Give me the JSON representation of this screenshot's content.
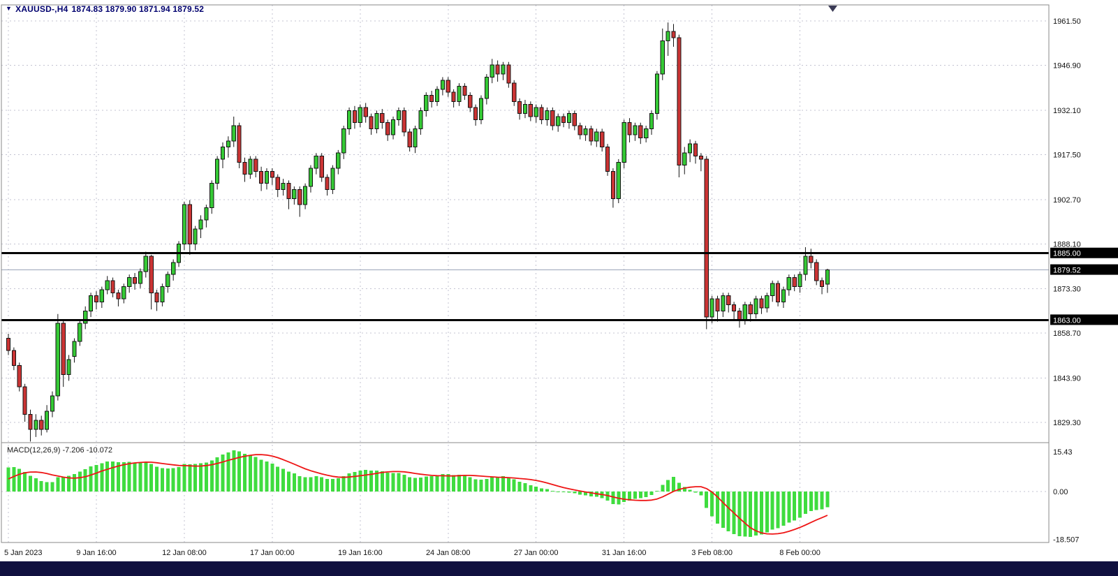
{
  "window": {
    "bottom_bar_color": "#10103f"
  },
  "header": {
    "dropdown_icon": "▼",
    "symbol": "XAUUSD-,H4",
    "ohlc": "1874.83 1879.90 1871.94 1879.52",
    "text_color": "#00006e"
  },
  "chart_data": {
    "type": "candlestick",
    "symbol": "XAUUSD-",
    "timeframe": "H4",
    "title": "XAUUSD-,H4 1874.83 1879.90 1871.94 1879.52",
    "price_axis_ticks": [
      "1961.50",
      "1946.90",
      "1932.10",
      "1917.50",
      "1902.70",
      "1888.10",
      "1873.30",
      "1858.70",
      "1843.90",
      "1829.30"
    ],
    "time_axis_labels": [
      "5 Jan 2023",
      "9 Jan 16:00",
      "12 Jan 08:00",
      "17 Jan 00:00",
      "19 Jan 16:00",
      "24 Jan 08:00",
      "27 Jan 00:00",
      "31 Jan 16:00",
      "3 Feb 08:00",
      "8 Feb 00:00"
    ],
    "hlines": [
      {
        "price": 1885.0,
        "label": "1885.00"
      },
      {
        "price": 1863.0,
        "label": "1863.00"
      }
    ],
    "current_price": {
      "value": 1879.52,
      "label": "1879.52"
    },
    "colors": {
      "up": "#35c935",
      "down": "#cb3434",
      "outline": "#141414",
      "hline": "#000000",
      "bid_line": "#9aa4b8",
      "macd_hist": "#3fdc3f",
      "macd_signal": "#ee1515"
    },
    "candles_ohlc": [
      [
        1857,
        1858.5,
        1851.5,
        1853
      ],
      [
        1853,
        1854,
        1846.5,
        1848
      ],
      [
        1848,
        1849,
        1839.5,
        1841
      ],
      [
        1841,
        1842,
        1829.5,
        1832
      ],
      [
        1832,
        1833.5,
        1823,
        1827
      ],
      [
        1827,
        1832,
        1824.5,
        1830
      ],
      [
        1830,
        1831.5,
        1825,
        1827
      ],
      [
        1827,
        1835,
        1826,
        1833
      ],
      [
        1833,
        1839.5,
        1831,
        1838
      ],
      [
        1838,
        1865,
        1836.5,
        1862
      ],
      [
        1862,
        1863,
        1841,
        1845
      ],
      [
        1845,
        1851.5,
        1843,
        1850
      ],
      [
        1851,
        1857,
        1849,
        1856
      ],
      [
        1856,
        1863,
        1854.5,
        1862
      ],
      [
        1862,
        1867.5,
        1860,
        1866
      ],
      [
        1866,
        1872,
        1864,
        1871
      ],
      [
        1871,
        1872.5,
        1866.5,
        1869
      ],
      [
        1869,
        1874,
        1867,
        1873
      ],
      [
        1873,
        1877.5,
        1871.5,
        1876
      ],
      [
        1876,
        1877,
        1870.5,
        1872
      ],
      [
        1872,
        1873,
        1867.5,
        1870
      ],
      [
        1870,
        1875,
        1868.5,
        1874
      ],
      [
        1874,
        1878,
        1872,
        1877
      ],
      [
        1877,
        1878.5,
        1873,
        1875
      ],
      [
        1875,
        1880,
        1873.5,
        1879
      ],
      [
        1879,
        1885.5,
        1877,
        1884
      ],
      [
        1884,
        1884.5,
        1866.5,
        1872
      ],
      [
        1872,
        1873,
        1866,
        1869
      ],
      [
        1869,
        1875,
        1867.5,
        1874
      ],
      [
        1874,
        1879,
        1872,
        1878
      ],
      [
        1878,
        1883,
        1876,
        1882
      ],
      [
        1882,
        1889,
        1880.5,
        1888
      ],
      [
        1888,
        1902,
        1886,
        1901
      ],
      [
        1901,
        1902.5,
        1884.5,
        1888
      ],
      [
        1888,
        1894,
        1886,
        1893
      ],
      [
        1893,
        1897.5,
        1890,
        1896
      ],
      [
        1896,
        1901,
        1893.5,
        1900
      ],
      [
        1900,
        1909,
        1898,
        1908
      ],
      [
        1908,
        1917,
        1906,
        1916
      ],
      [
        1916,
        1921.5,
        1913,
        1920
      ],
      [
        1920,
        1923.5,
        1916.5,
        1922
      ],
      [
        1922,
        1930,
        1920,
        1927
      ],
      [
        1927,
        1928,
        1913,
        1915
      ],
      [
        1915,
        1916.5,
        1908.5,
        1911
      ],
      [
        1911,
        1917,
        1909.5,
        1916
      ],
      [
        1916,
        1917,
        1910,
        1912
      ],
      [
        1912,
        1913.5,
        1905.5,
        1908
      ],
      [
        1908,
        1913,
        1906,
        1912
      ],
      [
        1912,
        1913,
        1907.5,
        1910
      ],
      [
        1910,
        1911,
        1903.5,
        1906
      ],
      [
        1906,
        1909.5,
        1904,
        1908
      ],
      [
        1908,
        1909,
        1899.5,
        1903
      ],
      [
        1903,
        1907,
        1901,
        1906
      ],
      [
        1906,
        1907,
        1897,
        1901
      ],
      [
        1901,
        1908,
        1899.5,
        1907
      ],
      [
        1907,
        1914,
        1905,
        1913
      ],
      [
        1913,
        1918,
        1911,
        1917
      ],
      [
        1917,
        1918,
        1908.5,
        1910
      ],
      [
        1910,
        1911,
        1904,
        1906
      ],
      [
        1906,
        1914,
        1904.5,
        1913
      ],
      [
        1913,
        1919,
        1911,
        1918
      ],
      [
        1918,
        1927,
        1916,
        1926
      ],
      [
        1926,
        1933,
        1924,
        1932
      ],
      [
        1932,
        1933.5,
        1926,
        1928
      ],
      [
        1928,
        1934,
        1926.5,
        1933
      ],
      [
        1933,
        1934.5,
        1928,
        1930
      ],
      [
        1930,
        1931,
        1924,
        1926
      ],
      [
        1926,
        1932,
        1924.5,
        1931
      ],
      [
        1931,
        1932.5,
        1926,
        1928
      ],
      [
        1928,
        1929,
        1922,
        1924
      ],
      [
        1924,
        1930,
        1922.5,
        1929
      ],
      [
        1929,
        1933,
        1927,
        1932
      ],
      [
        1932,
        1933,
        1923.5,
        1925
      ],
      [
        1925,
        1926,
        1918.5,
        1920
      ],
      [
        1920,
        1927,
        1918,
        1926
      ],
      [
        1926,
        1933,
        1924,
        1932
      ],
      [
        1932,
        1938,
        1930,
        1937
      ],
      [
        1937,
        1938.5,
        1933,
        1935
      ],
      [
        1935,
        1940,
        1933.5,
        1939
      ],
      [
        1939,
        1943,
        1937,
        1942
      ],
      [
        1942,
        1943,
        1936.5,
        1938
      ],
      [
        1938,
        1939,
        1933,
        1935
      ],
      [
        1935,
        1941,
        1933.5,
        1940
      ],
      [
        1940,
        1941,
        1935.5,
        1937
      ],
      [
        1937,
        1938,
        1931.5,
        1933
      ],
      [
        1933,
        1934,
        1927,
        1929
      ],
      [
        1929,
        1937,
        1927.5,
        1936
      ],
      [
        1936,
        1944,
        1934,
        1943
      ],
      [
        1943,
        1949,
        1941,
        1947
      ],
      [
        1947,
        1948.5,
        1941.5,
        1944
      ],
      [
        1944,
        1948,
        1942,
        1947
      ],
      [
        1947,
        1948,
        1939.5,
        1941
      ],
      [
        1941,
        1942,
        1933.5,
        1935
      ],
      [
        1935,
        1936,
        1929,
        1931
      ],
      [
        1931,
        1935.5,
        1929.5,
        1934
      ],
      [
        1934,
        1935,
        1928.5,
        1930
      ],
      [
        1930,
        1934,
        1928,
        1933
      ],
      [
        1933,
        1934,
        1927.5,
        1929
      ],
      [
        1929,
        1933,
        1927,
        1932
      ],
      [
        1932,
        1933,
        1925.5,
        1927
      ],
      [
        1927,
        1931,
        1925,
        1930
      ],
      [
        1930,
        1931,
        1926.5,
        1928
      ],
      [
        1928,
        1932,
        1926,
        1931
      ],
      [
        1931,
        1932,
        1925.5,
        1927
      ],
      [
        1927,
        1928,
        1922.5,
        1924
      ],
      [
        1924,
        1927,
        1922,
        1926
      ],
      [
        1926,
        1927,
        1920.5,
        1922
      ],
      [
        1922,
        1926,
        1920,
        1925
      ],
      [
        1925,
        1926,
        1918.5,
        1920
      ],
      [
        1920,
        1921,
        1910.5,
        1912
      ],
      [
        1912,
        1913,
        1900,
        1903
      ],
      [
        1903,
        1916,
        1901.5,
        1915
      ],
      [
        1915,
        1929,
        1913,
        1928
      ],
      [
        1928,
        1929.5,
        1921.5,
        1924
      ],
      [
        1924,
        1928,
        1922,
        1927
      ],
      [
        1927,
        1928,
        1921,
        1923
      ],
      [
        1923,
        1927,
        1921.5,
        1926
      ],
      [
        1926,
        1932,
        1924,
        1931
      ],
      [
        1931,
        1945,
        1929,
        1944
      ],
      [
        1944,
        1959,
        1942,
        1955
      ],
      [
        1955,
        1961,
        1950,
        1958
      ],
      [
        1958,
        1960.5,
        1953,
        1956
      ],
      [
        1956,
        1957,
        1910,
        1914
      ],
      [
        1914,
        1920,
        1911,
        1918
      ],
      [
        1918,
        1922.5,
        1915,
        1921
      ],
      [
        1921,
        1922,
        1914.5,
        1917
      ],
      [
        1917,
        1918,
        1912,
        1916
      ],
      [
        1916,
        1917,
        1860,
        1864
      ],
      [
        1864,
        1871,
        1862,
        1870
      ],
      [
        1870,
        1871,
        1862.5,
        1866
      ],
      [
        1866,
        1872,
        1864,
        1871
      ],
      [
        1871,
        1872,
        1865.5,
        1868
      ],
      [
        1868,
        1869,
        1863,
        1866
      ],
      [
        1866,
        1867,
        1860.5,
        1863
      ],
      [
        1863,
        1869,
        1861.5,
        1868
      ],
      [
        1868,
        1869,
        1862.5,
        1865
      ],
      [
        1865,
        1871,
        1863.5,
        1870
      ],
      [
        1870,
        1871,
        1865,
        1867
      ],
      [
        1867,
        1872,
        1865.5,
        1871
      ],
      [
        1871,
        1876,
        1869,
        1875
      ],
      [
        1875,
        1876,
        1867.5,
        1869
      ],
      [
        1869,
        1874,
        1867,
        1873
      ],
      [
        1873,
        1878,
        1871,
        1877
      ],
      [
        1877,
        1878,
        1872.5,
        1874
      ],
      [
        1874,
        1879,
        1872,
        1878
      ],
      [
        1878,
        1887,
        1876,
        1884
      ],
      [
        1884,
        1886.5,
        1880,
        1882
      ],
      [
        1882,
        1883,
        1874.5,
        1876
      ],
      [
        1876,
        1877,
        1871.5,
        1874
      ],
      [
        1874.83,
        1879.9,
        1871.94,
        1879.52
      ]
    ],
    "macd": {
      "label": "MACD(12,26,9) -7.206 -10.072",
      "name": "MACD",
      "params": [
        12,
        26,
        9
      ],
      "main_value": -7.206,
      "signal_value": -10.072,
      "ticks": [
        "15.43",
        "0.00",
        "-18.507"
      ]
    }
  }
}
